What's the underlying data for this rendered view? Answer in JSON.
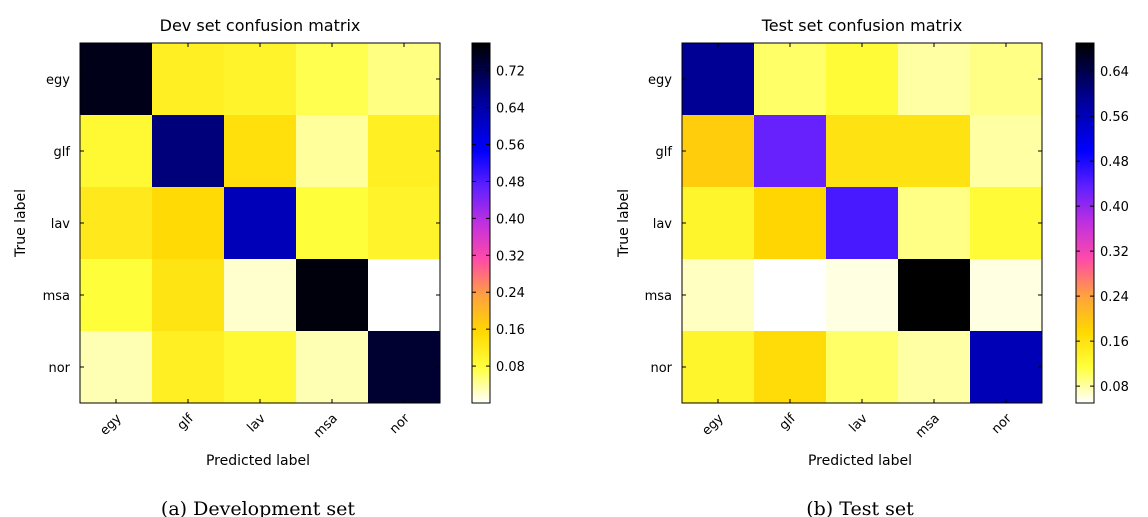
{
  "chart_data": [
    {
      "type": "heatmap",
      "title": "Dev set confusion matrix",
      "xlabel": "Predicted label",
      "ylabel": "True label",
      "caption": "(a)  Development set",
      "x_categories": [
        "egy",
        "glf",
        "lav",
        "msa",
        "nor"
      ],
      "y_categories": [
        "egy",
        "glf",
        "lav",
        "msa",
        "nor"
      ],
      "values": [
        [
          0.76,
          0.11,
          0.1,
          0.07,
          0.05
        ],
        [
          0.09,
          0.68,
          0.14,
          0.04,
          0.11
        ],
        [
          0.12,
          0.15,
          0.62,
          0.08,
          0.1
        ],
        [
          0.08,
          0.13,
          0.02,
          0.77,
          0.0
        ],
        [
          0.03,
          0.11,
          0.09,
          0.03,
          0.74
        ]
      ],
      "colorbar": {
        "colormap": "gnuplot2_r",
        "range": [
          0.0,
          0.78
        ],
        "ticks": [
          0.08,
          0.16,
          0.24,
          0.32,
          0.4,
          0.48,
          0.56,
          0.64,
          0.72
        ],
        "tick_labels": [
          "0.08",
          "0.16",
          "0.24",
          "0.32",
          "0.40",
          "0.48",
          "0.56",
          "0.64",
          "0.72"
        ]
      }
    },
    {
      "type": "heatmap",
      "title": "Test set confusion matrix",
      "xlabel": "Predicted label",
      "ylabel": "True label",
      "caption": "(b)  Test set",
      "x_categories": [
        "egy",
        "glf",
        "lav",
        "msa",
        "nor"
      ],
      "y_categories": [
        "egy",
        "glf",
        "lav",
        "msa",
        "nor"
      ],
      "values": [
        [
          0.59,
          0.1,
          0.12,
          0.08,
          0.09
        ],
        [
          0.19,
          0.43,
          0.16,
          0.16,
          0.08
        ],
        [
          0.13,
          0.18,
          0.45,
          0.09,
          0.12
        ],
        [
          0.07,
          0.04,
          0.06,
          0.69,
          0.06
        ],
        [
          0.13,
          0.17,
          0.1,
          0.08,
          0.56
        ]
      ],
      "colorbar": {
        "colormap": "gnuplot2_r",
        "range": [
          0.05,
          0.69
        ],
        "ticks": [
          0.08,
          0.16,
          0.24,
          0.32,
          0.4,
          0.48,
          0.56,
          0.64
        ],
        "tick_labels": [
          "0.08",
          "0.16",
          "0.24",
          "0.32",
          "0.40",
          "0.48",
          "0.56",
          "0.64"
        ]
      }
    }
  ]
}
